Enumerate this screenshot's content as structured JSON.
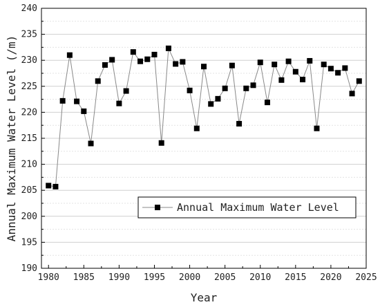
{
  "chart_data": {
    "type": "line",
    "xlabel": "Year",
    "ylabel": "Annual Maximum Water Level (/m)",
    "xlim": [
      1979,
      2025
    ],
    "ylim": [
      190,
      240
    ],
    "xticks": [
      1980,
      1985,
      1990,
      1995,
      2000,
      2005,
      2010,
      2015,
      2020,
      2025
    ],
    "yticks": [
      190,
      195,
      200,
      205,
      210,
      215,
      220,
      225,
      230,
      235,
      240
    ],
    "grid": true,
    "legend": {
      "placement": "lower-right"
    },
    "series": [
      {
        "name": "Annual Maximum Water Level",
        "marker": "square",
        "line_color": "#888888",
        "marker_color": "#000000",
        "x": [
          1980,
          1981,
          1982,
          1983,
          1984,
          1985,
          1986,
          1987,
          1988,
          1989,
          1990,
          1991,
          1992,
          1993,
          1994,
          1995,
          1996,
          1997,
          1998,
          1999,
          2000,
          2001,
          2002,
          2003,
          2004,
          2005,
          2006,
          2007,
          2008,
          2009,
          2010,
          2011,
          2012,
          2013,
          2014,
          2015,
          2016,
          2017,
          2018,
          2019,
          2020,
          2021,
          2022,
          2023,
          2024
        ],
        "y": [
          205.9,
          205.7,
          222.2,
          231.0,
          222.1,
          220.2,
          214.0,
          226.0,
          229.1,
          230.1,
          221.7,
          224.1,
          231.6,
          229.8,
          230.2,
          231.1,
          214.1,
          232.3,
          229.3,
          229.7,
          224.2,
          216.9,
          228.8,
          221.6,
          222.6,
          224.6,
          229.0,
          217.8,
          224.6,
          225.2,
          229.6,
          221.9,
          229.2,
          226.2,
          229.8,
          227.8,
          226.3,
          229.9,
          216.9,
          229.2,
          228.4,
          227.6,
          228.5,
          223.6,
          226.0
        ]
      }
    ]
  }
}
